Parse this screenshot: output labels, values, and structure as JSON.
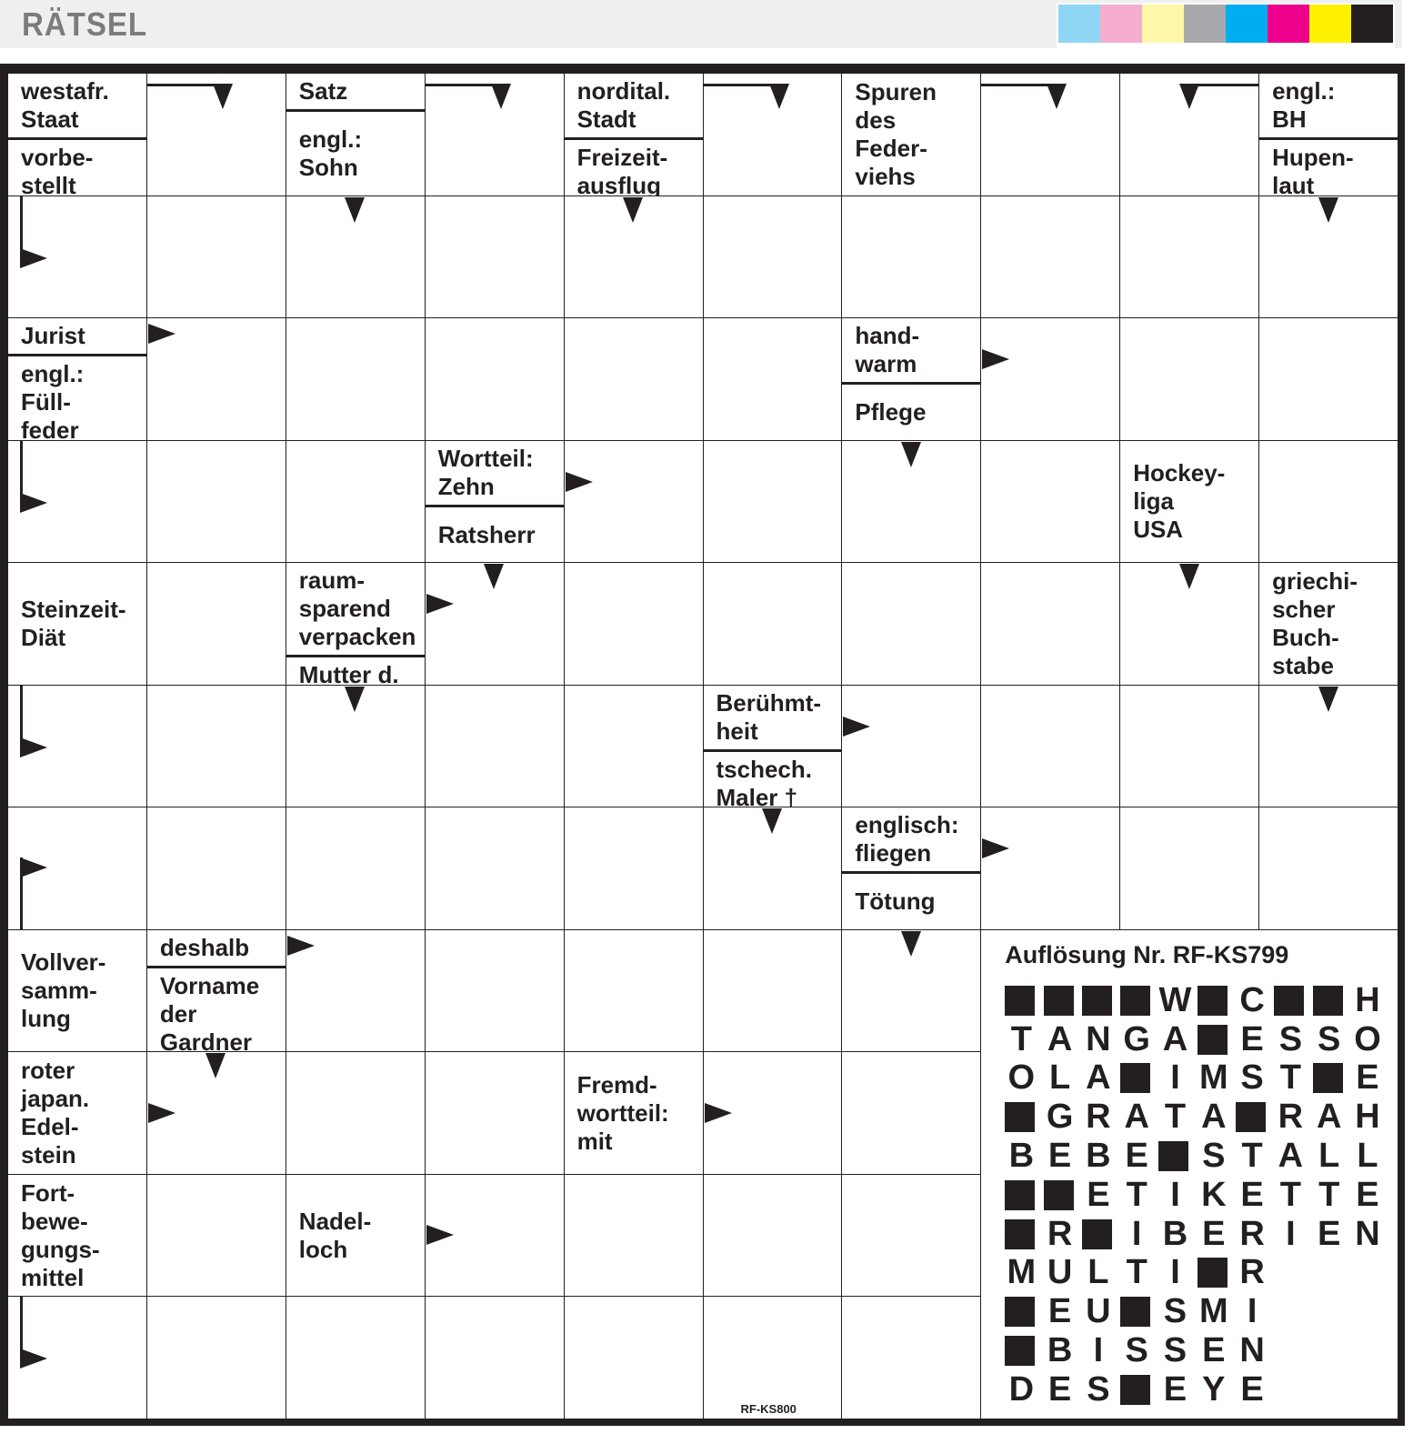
{
  "header": {
    "title": "RÄTSEL",
    "color_swatches": [
      "#8fd6f5",
      "#f5aed0",
      "#fff7a8",
      "#a7a9ac",
      "#00aeef",
      "#ec008c",
      "#fff200",
      "#231f20"
    ]
  },
  "puzzle": {
    "columns": 10,
    "rows": 11,
    "code": "RF-KS800",
    "clues": [
      {
        "row": 0,
        "col": 0,
        "parts": [
          "westafr.\nStaat",
          "vorbe-\nstellt"
        ]
      },
      {
        "row": 0,
        "col": 2,
        "parts": [
          "Satz",
          "engl.:\nSohn"
        ]
      },
      {
        "row": 0,
        "col": 4,
        "parts": [
          "nordital.\nStadt",
          "Freizeit-\nausflug"
        ]
      },
      {
        "row": 0,
        "col": 6,
        "parts": [
          "Spuren\ndes\nFeder-\nviehs"
        ]
      },
      {
        "row": 0,
        "col": 9,
        "parts": [
          "engl.:\nBH",
          "Hupen-\nlaut"
        ]
      },
      {
        "row": 2,
        "col": 0,
        "parts": [
          "Jurist",
          "engl.:\nFüll-\nfeder"
        ]
      },
      {
        "row": 2,
        "col": 6,
        "parts": [
          "hand-\nwarm",
          "Pflege"
        ]
      },
      {
        "row": 3,
        "col": 3,
        "parts": [
          "Wortteil:\nZehn",
          "Ratsherr"
        ]
      },
      {
        "row": 3,
        "col": 8,
        "parts": [
          "Hockey-\nliga\nUSA"
        ]
      },
      {
        "row": 4,
        "col": 0,
        "parts": [
          "Steinzeit-\nDiät"
        ]
      },
      {
        "row": 4,
        "col": 2,
        "parts": [
          "raum-\nsparend\nverpacken",
          "Mutter d.\nHelena"
        ]
      },
      {
        "row": 4,
        "col": 9,
        "parts": [
          "griechi-\nscher\nBuch-\nstabe"
        ]
      },
      {
        "row": 5,
        "col": 5,
        "parts": [
          "Berühmt-\nheit",
          "tschech.\nMaler †"
        ]
      },
      {
        "row": 6,
        "col": 6,
        "parts": [
          "englisch:\nfliegen",
          "Tötung"
        ]
      },
      {
        "row": 7,
        "col": 0,
        "parts": [
          "Vollver-\nsamm-\nlung"
        ]
      },
      {
        "row": 7,
        "col": 1,
        "parts": [
          "deshalb",
          "Vorname\nder\nGardner"
        ]
      },
      {
        "row": 8,
        "col": 0,
        "parts": [
          "roter\njapan.\nEdel-\nstein"
        ]
      },
      {
        "row": 8,
        "col": 4,
        "parts": [
          "Fremd-\nwortteil:\nmit"
        ]
      },
      {
        "row": 9,
        "col": 0,
        "parts": [
          "Fort-\nbewe-\ngungs-\nmittel"
        ]
      },
      {
        "row": 9,
        "col": 2,
        "parts": [
          "Nadel-\nloch"
        ]
      }
    ],
    "arrows": [
      {
        "row": 0,
        "col": 1,
        "type": "bend-down"
      },
      {
        "row": 0,
        "col": 3,
        "type": "bend-down"
      },
      {
        "row": 0,
        "col": 5,
        "type": "bend-down"
      },
      {
        "row": 0,
        "col": 7,
        "type": "bend-down"
      },
      {
        "row": 0,
        "col": 8,
        "type": "bend-down-from-right"
      },
      {
        "row": 1,
        "col": 0,
        "type": "bend-right"
      },
      {
        "row": 1,
        "col": 2,
        "type": "down"
      },
      {
        "row": 1,
        "col": 4,
        "type": "down"
      },
      {
        "row": 1,
        "col": 9,
        "type": "down"
      },
      {
        "row": 2,
        "col": 1,
        "type": "right-top"
      },
      {
        "row": 2,
        "col": 7,
        "type": "right-upper"
      },
      {
        "row": 3,
        "col": 6,
        "type": "down"
      },
      {
        "row": 3,
        "col": 0,
        "type": "bend-right"
      },
      {
        "row": 3,
        "col": 4,
        "type": "right-upper"
      },
      {
        "row": 4,
        "col": 3,
        "type": "down"
      },
      {
        "row": 4,
        "col": 8,
        "type": "down"
      },
      {
        "row": 4,
        "col": 3,
        "type": "right-upper"
      },
      {
        "row": 5,
        "col": 2,
        "type": "down"
      },
      {
        "row": 5,
        "col": 9,
        "type": "down"
      },
      {
        "row": 5,
        "col": 0,
        "type": "bend-right"
      },
      {
        "row": 5,
        "col": 6,
        "type": "right-upper"
      },
      {
        "row": 6,
        "col": 5,
        "type": "down"
      },
      {
        "row": 6,
        "col": 0,
        "type": "flag-up"
      },
      {
        "row": 6,
        "col": 7,
        "type": "right-upper"
      },
      {
        "row": 7,
        "col": 6,
        "type": "down"
      },
      {
        "row": 7,
        "col": 2,
        "type": "right-top"
      },
      {
        "row": 8,
        "col": 1,
        "type": "down"
      },
      {
        "row": 8,
        "col": 1,
        "type": "right-mid"
      },
      {
        "row": 8,
        "col": 5,
        "type": "right-mid"
      },
      {
        "row": 9,
        "col": 3,
        "type": "right-mid"
      },
      {
        "row": 10,
        "col": 0,
        "type": "bend-right"
      }
    ],
    "solution": {
      "title": "Auflösung Nr. RF-KS799",
      "rows": [
        "####W#C##H",
        "TANGA#ESSO",
        "OLA#IMST#E",
        "#GRATA#RAH",
        "BEBE#STALL",
        "##ETIKETTE",
        "#R#IBERIEN",
        "MULTI#R",
        "#EU#SMI",
        "#BISSEN",
        "DES#EYE"
      ]
    }
  }
}
